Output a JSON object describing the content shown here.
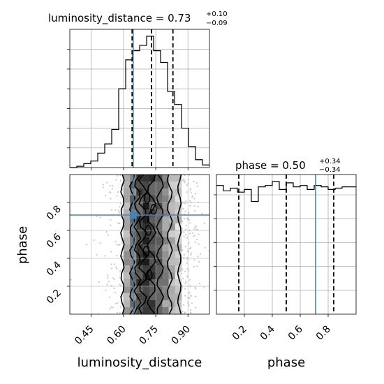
{
  "chart_data": [
    {
      "type": "histogram",
      "title_param": "luminosity_distance",
      "title_value": "0.73",
      "title_plus": "+0.10",
      "title_minus": "−0.09",
      "xlim": [
        0.35,
        1.0
      ],
      "bin_edges": [
        0.35,
        0.3825,
        0.415,
        0.4475,
        0.48,
        0.5125,
        0.545,
        0.5775,
        0.61,
        0.6425,
        0.675,
        0.7075,
        0.74,
        0.7725,
        0.805,
        0.8375,
        0.87,
        0.9025,
        0.935,
        0.9675,
        1.0
      ],
      "counts": [
        0.0,
        0.01,
        0.03,
        0.05,
        0.11,
        0.18,
        0.29,
        0.6,
        0.82,
        0.89,
        0.93,
        1.0,
        0.89,
        0.8,
        0.58,
        0.48,
        0.3,
        0.16,
        0.06,
        0.02
      ],
      "quantiles": [
        0.64,
        0.73,
        0.83
      ],
      "truth": 0.645,
      "truth_color": "#4682b4"
    },
    {
      "type": "histogram",
      "title_param": "phase",
      "title_value": "0.50",
      "title_plus": "+0.34",
      "title_minus": "−0.34",
      "xlabel": "phase",
      "xlim": [
        0.0,
        1.0
      ],
      "xticks": [
        "0.2",
        "0.4",
        "0.6",
        "0.8"
      ],
      "xtick_values": [
        0.2,
        0.4,
        0.6,
        0.8
      ],
      "bin_edges": [
        0.0,
        0.05,
        0.1,
        0.15,
        0.2,
        0.25,
        0.3,
        0.35,
        0.4,
        0.45,
        0.5,
        0.55,
        0.6,
        0.65,
        0.7,
        0.75,
        0.8,
        0.85,
        0.9,
        0.95,
        1.0
      ],
      "counts": [
        0.97,
        0.93,
        0.95,
        0.92,
        0.94,
        0.85,
        0.96,
        0.97,
        1.0,
        0.94,
        0.99,
        0.96,
        0.97,
        0.94,
        0.97,
        0.96,
        0.94,
        0.95,
        0.96,
        0.96
      ],
      "quantiles": [
        0.16,
        0.5,
        0.84
      ],
      "truth": 0.71,
      "truth_color": "#4682b4"
    },
    {
      "type": "scatter",
      "xlabel": "luminosity_distance",
      "ylabel": "phase",
      "xlim": [
        0.35,
        1.0
      ],
      "ylim": [
        0.0,
        1.0
      ],
      "xticks": [
        "0.45",
        "0.60",
        "0.75",
        "0.90"
      ],
      "xtick_values": [
        0.45,
        0.6,
        0.75,
        0.9
      ],
      "yticks": [
        "0.2",
        "0.4",
        "0.6",
        "0.8"
      ],
      "ytick_values": [
        0.2,
        0.4,
        0.6,
        0.8
      ],
      "grid": true,
      "truth": [
        0.645,
        0.71
      ],
      "truth_color": "#4682b4",
      "density_columns": [
        {
          "x": [
            0.6,
            0.63
          ],
          "shade": 0.65
        },
        {
          "x": [
            0.63,
            0.66
          ],
          "shade": 0.45
        },
        {
          "x": [
            0.66,
            0.69
          ],
          "shade": 0.3
        },
        {
          "x": [
            0.69,
            0.72
          ],
          "shade": 0.2
        },
        {
          "x": [
            0.72,
            0.75
          ],
          "shade": 0.28
        },
        {
          "x": [
            0.75,
            0.78
          ],
          "shade": 0.4
        },
        {
          "x": [
            0.78,
            0.81
          ],
          "shade": 0.55
        },
        {
          "x": [
            0.81,
            0.84
          ],
          "shade": 0.7
        },
        {
          "x": [
            0.84,
            0.87
          ],
          "shade": 0.8
        }
      ],
      "contours": [
        {
          "x_left": 0.595,
          "x_right": 0.86
        },
        {
          "x_left": 0.64,
          "x_right": 0.815
        },
        {
          "x_left": 0.665,
          "x_right": 0.77
        },
        {
          "x_left": 0.69,
          "x_right": 0.73
        }
      ]
    }
  ]
}
